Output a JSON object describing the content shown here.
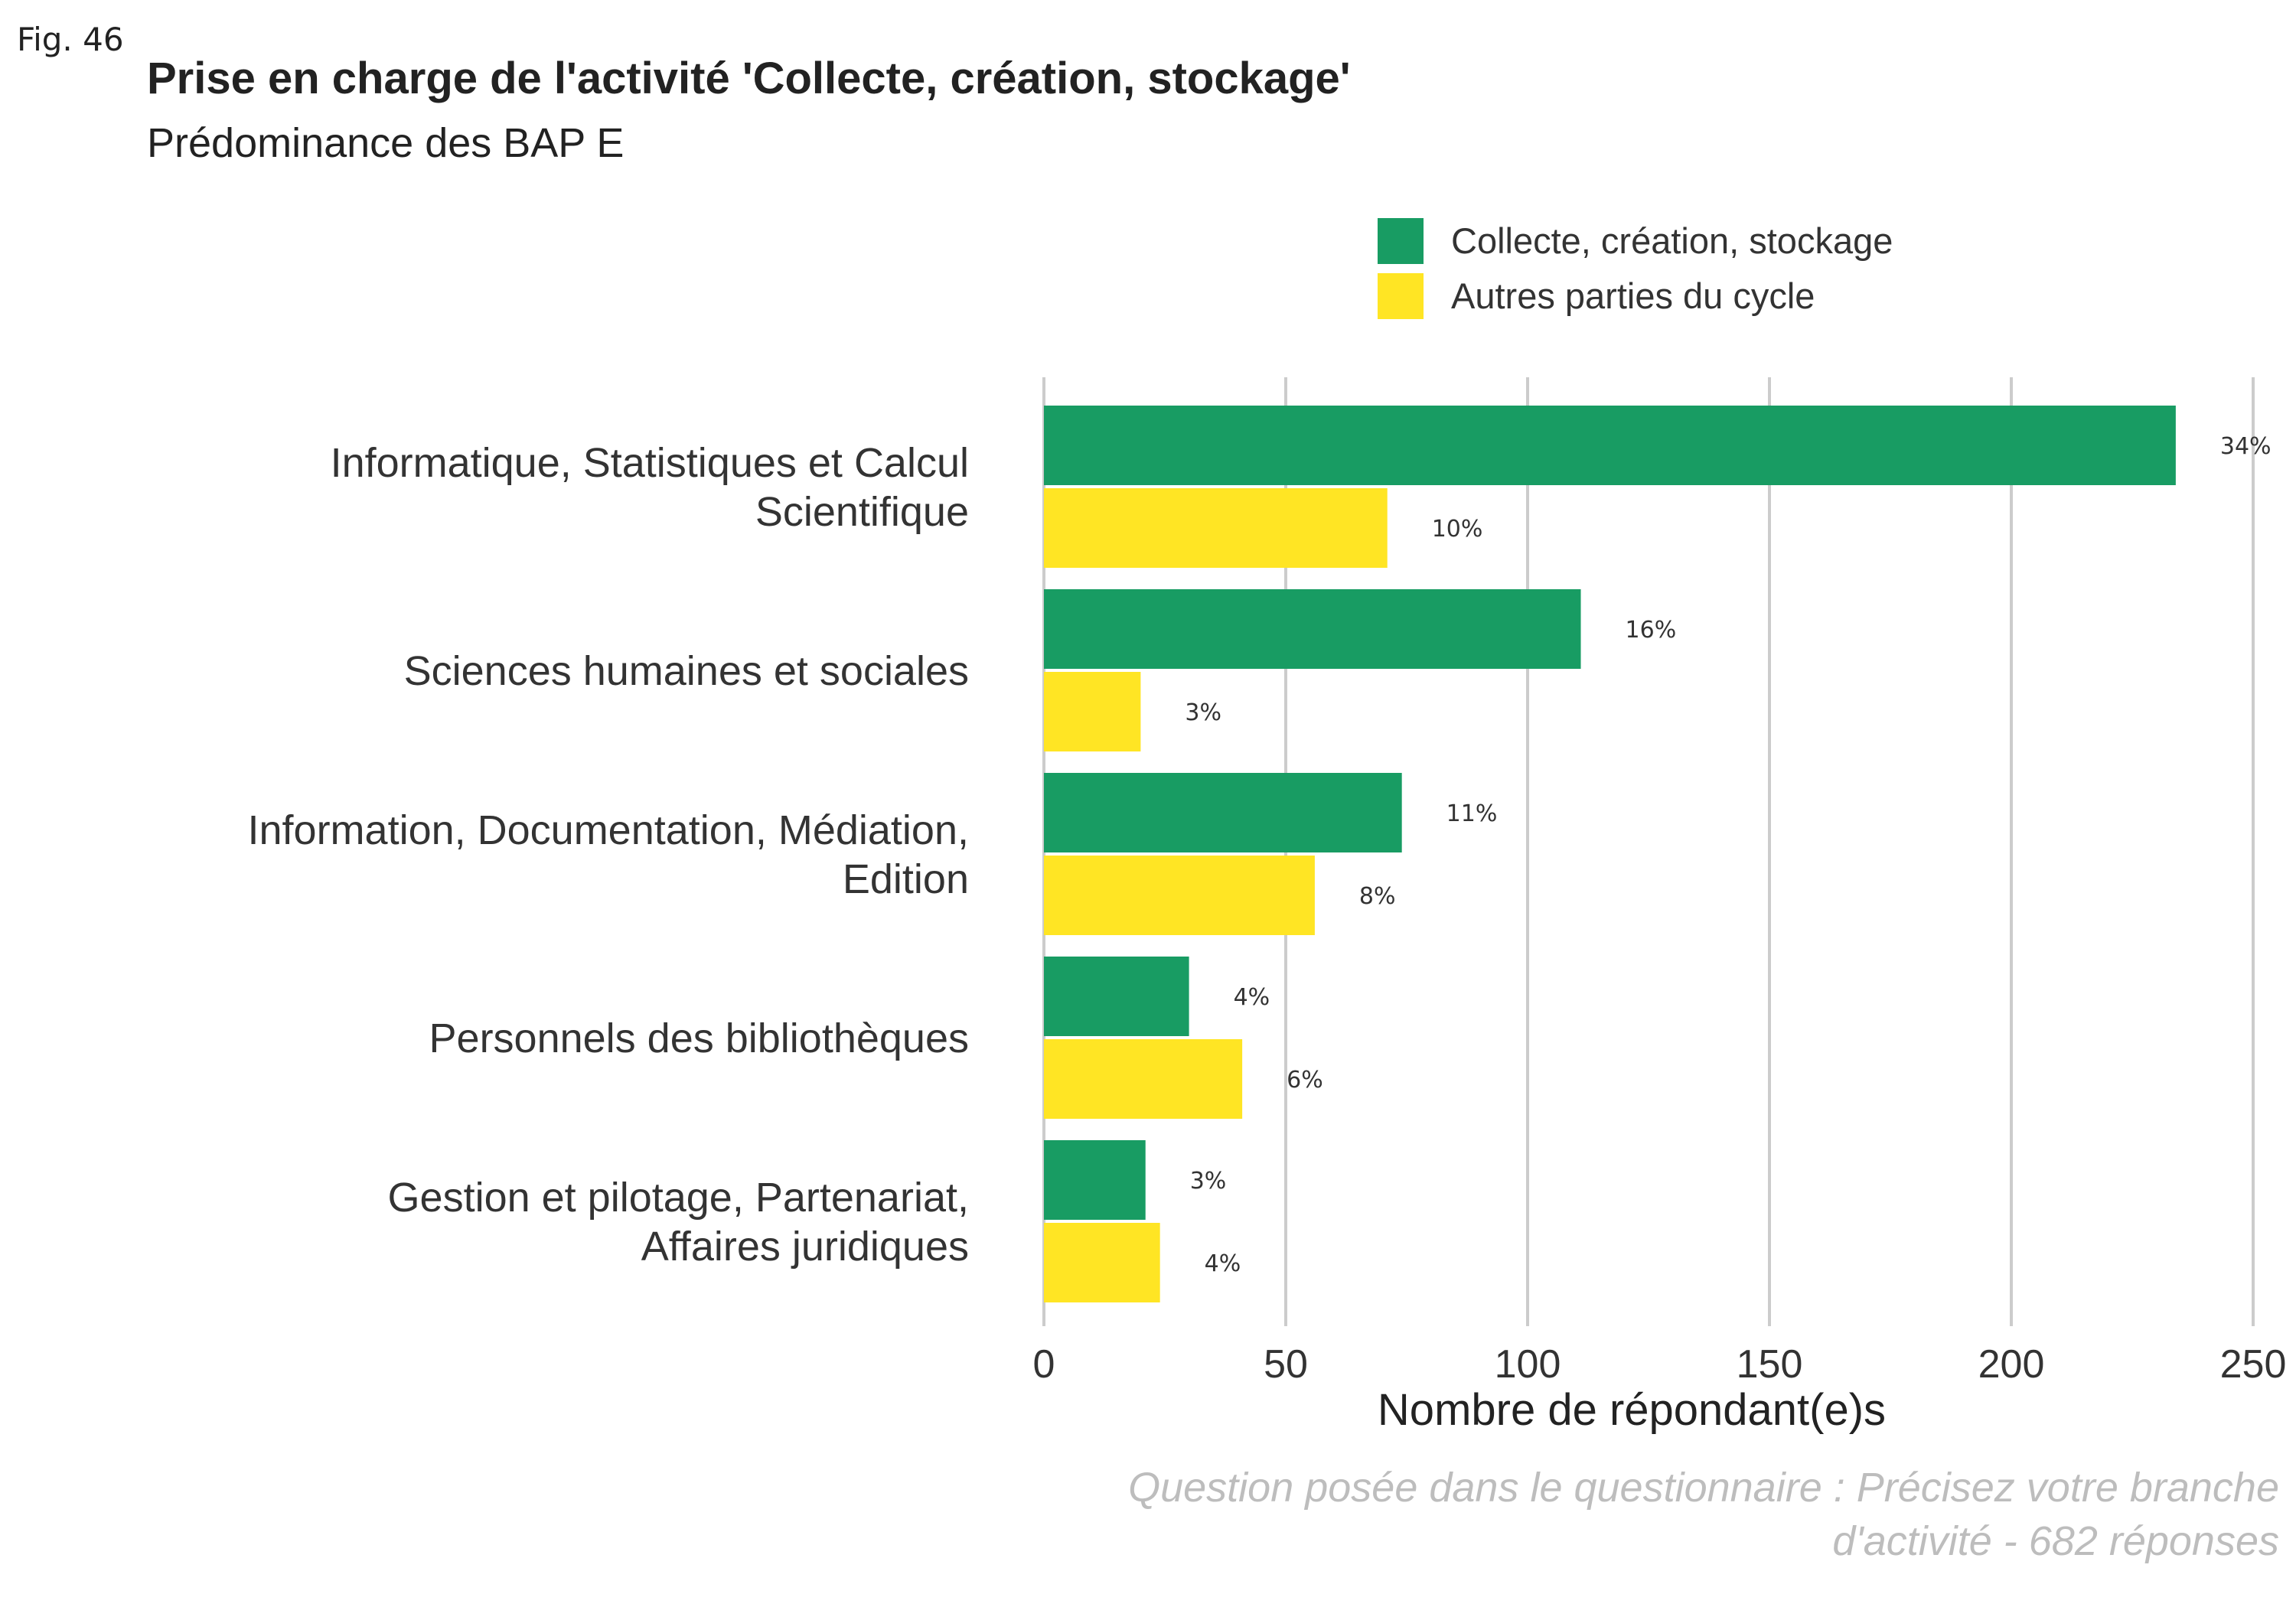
{
  "figure": {
    "label": "Fig. 46",
    "caption": [
      "Question posée dans le questionnaire : Précisez votre branche",
      "d'activité - 682 réponses"
    ]
  },
  "chart_data": {
    "type": "bar",
    "orientation": "horizontal",
    "title": "Prise en charge de l'activité 'Collecte, création, stockage'",
    "subtitle": "Prédominance des BAP E",
    "xlabel": "Nombre de répondant(e)s",
    "ylabel": "",
    "xlim": [
      0,
      250
    ],
    "xticks": [
      0,
      50,
      100,
      150,
      200,
      250
    ],
    "grid": true,
    "legend_position": "top-right",
    "categories": [
      [
        "Informatique, Statistiques et Calcul",
        "Scientifique"
      ],
      [
        "Sciences humaines et sociales"
      ],
      [
        "Information, Documentation, Médiation,",
        "Edition"
      ],
      [
        "Personnels des bibliothèques"
      ],
      [
        "Gestion et pilotage, Partenariat,",
        "Affaires juridiques"
      ]
    ],
    "series": [
      {
        "name": "Collecte, création, stockage",
        "color": "#189c63",
        "values": [
          234,
          111,
          74,
          30,
          21
        ],
        "labels": [
          "34%",
          "16%",
          "11%",
          "4%",
          "3%"
        ]
      },
      {
        "name": "Autres parties du cycle",
        "color": "#ffe524",
        "values": [
          71,
          20,
          56,
          41,
          24
        ],
        "labels": [
          "10%",
          "3%",
          "8%",
          "6%",
          "4%"
        ]
      }
    ]
  }
}
